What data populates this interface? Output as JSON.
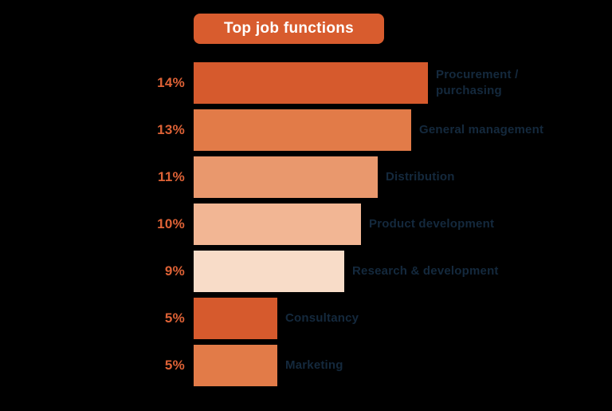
{
  "page": {
    "background": "#000000"
  },
  "title": {
    "label": "Top job functions",
    "badge_color": "#D85C2E",
    "text_color": "#FFFFFF"
  },
  "chart_data": {
    "type": "bar",
    "orientation": "horizontal",
    "title": "Top job functions",
    "categories": [
      "Procurement / purchasing",
      "General management",
      "Distribution",
      "Product development",
      "Research & development",
      "Consultancy",
      "Marketing"
    ],
    "values": [
      14,
      13,
      11,
      10,
      9,
      5,
      5
    ],
    "value_labels": [
      "14%",
      "13%",
      "11%",
      "10%",
      "9%",
      "5%",
      "5%"
    ],
    "xlim": [
      0,
      14
    ],
    "grid": false,
    "legend": false,
    "bar_colors": [
      "#D65A2D",
      "#E27B48",
      "#E9986D",
      "#F2B694",
      "#F8DCC8",
      "#D65A2D",
      "#E27B48"
    ],
    "value_label_color": "#DE6236",
    "category_label_color": "#14293D"
  }
}
